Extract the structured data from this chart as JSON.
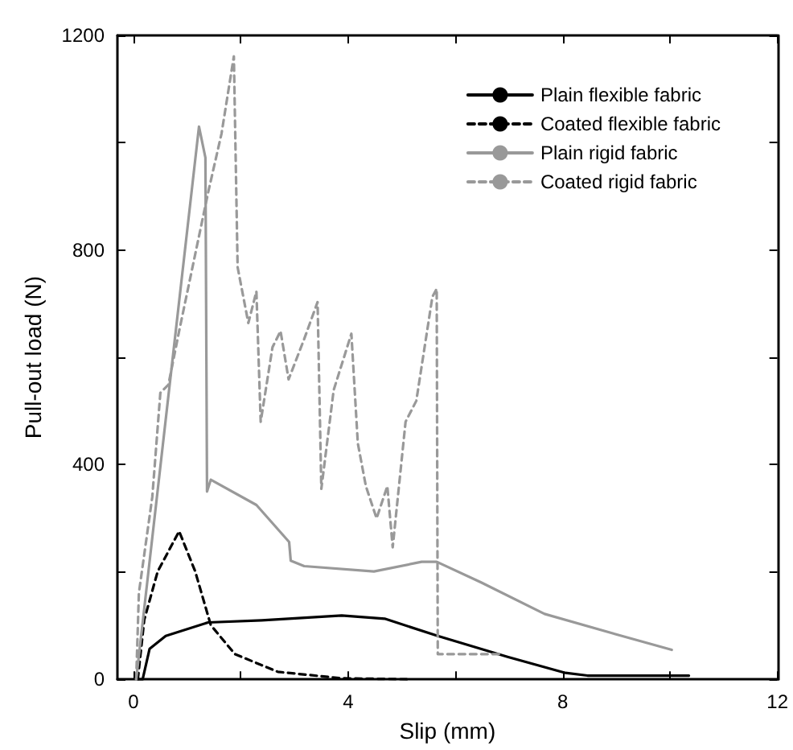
{
  "chart_data": {
    "type": "line",
    "xlabel": "Slip (mm)",
    "ylabel": "Pull-out load (N)",
    "xlim": [
      -0.3,
      12
    ],
    "xticks": [
      0,
      {
        "value": 2,
        "label": null
      },
      4,
      {
        "value": 6,
        "label": null
      },
      8,
      {
        "value": 10,
        "label": null
      },
      12
    ],
    "ylim": [
      0,
      1200
    ],
    "yticks": [
      0,
      {
        "value": 200,
        "label": null
      },
      400,
      {
        "value": 600,
        "label": null
      },
      800,
      {
        "value": 1000,
        "label": null
      },
      1200
    ],
    "grid": false,
    "legend": "top right",
    "marker": "none",
    "series": [
      {
        "name": "Plain flexible fabric",
        "color": "#000000",
        "line_style": "solid",
        "x": [
          0.1,
          0.17,
          0.3,
          0.6,
          1.39,
          2.39,
          3.88,
          4.68,
          5.67,
          5.97,
          6.97,
          8.05,
          8.46,
          10.35
        ],
        "values": [
          0,
          0,
          57,
          81,
          106,
          110,
          119,
          113,
          81,
          72,
          42,
          12,
          7,
          7
        ]
      },
      {
        "name": "Coated flexible fabric",
        "color": "#000000",
        "line_style": "dashed",
        "x": [
          0.08,
          0.2,
          0.45,
          0.85,
          1.15,
          1.44,
          1.89,
          2.69,
          3.88,
          5.18
        ],
        "values": [
          0,
          111,
          201,
          276,
          201,
          101,
          47,
          14,
          2,
          0
        ]
      },
      {
        "name": "Plain rigid fabric",
        "color": "#999999",
        "line_style": "solid",
        "x": [
          0.05,
          1.22,
          1.34,
          1.37,
          1.44,
          2.29,
          2.9,
          2.93,
          3.18,
          4.48,
          5.37,
          5.65,
          6.47,
          7.66,
          9.06,
          10.03
        ],
        "values": [
          0,
          1030,
          972,
          350,
          372,
          325,
          256,
          221,
          211,
          201,
          219,
          219,
          181,
          122,
          82,
          55
        ]
      },
      {
        "name": "Coated rigid fabric",
        "color": "#999999",
        "line_style": "dashed",
        "x": [
          0.05,
          0.1,
          0.35,
          0.5,
          0.65,
          0.85,
          1.39,
          1.64,
          1.87,
          1.94,
          2.14,
          2.29,
          2.37,
          2.59,
          2.74,
          2.89,
          3.18,
          3.43,
          3.5,
          3.73,
          4.06,
          4.18,
          4.33,
          4.53,
          4.73,
          4.83,
          5.07,
          5.27,
          5.57,
          5.65,
          5.67,
          6.87
        ],
        "values": [
          0,
          161,
          340,
          534,
          549,
          649,
          907,
          1017,
          1161,
          768,
          664,
          723,
          480,
          619,
          649,
          559,
          634,
          703,
          355,
          539,
          644,
          440,
          360,
          300,
          360,
          246,
          480,
          519,
          713,
          728,
          47,
          47
        ]
      }
    ]
  }
}
